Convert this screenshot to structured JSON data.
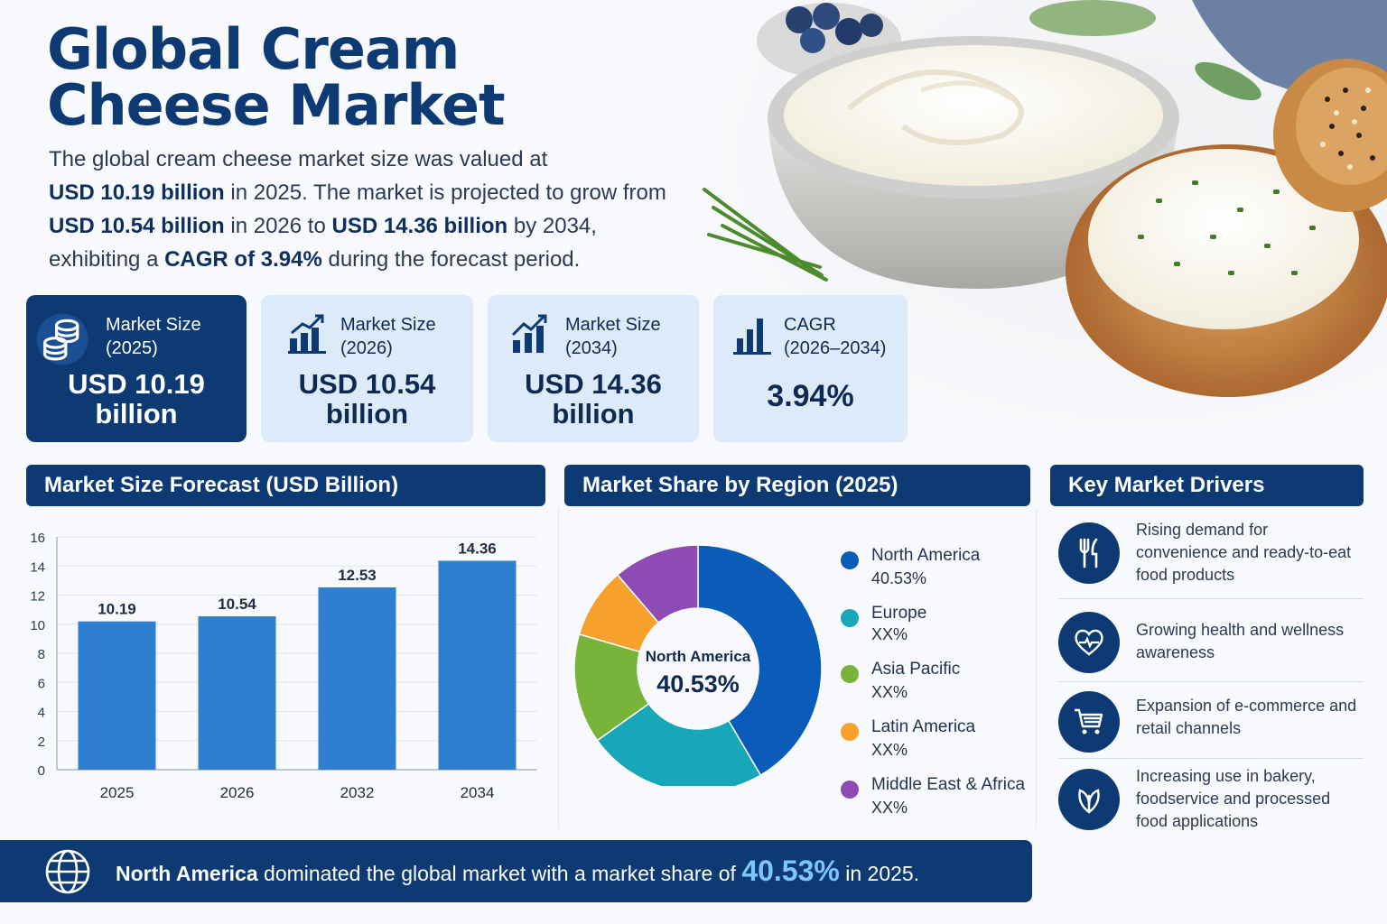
{
  "title": "Global Cream Cheese Market",
  "intro": {
    "p1": "The global cream cheese market size was valued at",
    "v1": "USD 10.19 billion",
    "p2": " in 2025. The market is projected to grow from ",
    "v2": "USD 10.54 billion",
    "p3": " in 2026 to ",
    "v3": "USD 14.36 billion",
    "p4": " by 2034, exhibiting a ",
    "v4": "CAGR of 3.94%",
    "p5": " during the forecast period."
  },
  "cards": [
    {
      "label1": "Market Size",
      "label2": "(2025)",
      "value1": "USD 10.19",
      "value2": "billion",
      "icon": "coins-icon"
    },
    {
      "label1": "Market Size",
      "label2": "(2026)",
      "value1": "USD 10.54",
      "value2": "billion",
      "icon": "bar-growth-icon"
    },
    {
      "label1": "Market Size",
      "label2": "(2034)",
      "value1": "USD 14.36",
      "value2": "billion",
      "icon": "bar-growth-icon"
    },
    {
      "label1": "CAGR",
      "label2": "(2026–2034)",
      "value1": "3.94%",
      "value2": "",
      "icon": "bar-chart-icon"
    }
  ],
  "sections": {
    "forecast": "Market Size Forecast (USD Billion)",
    "region": "Market Share by Region (2025)",
    "drivers": "Key Market Drivers"
  },
  "chart_data": [
    {
      "type": "bar",
      "title": "Market Size Forecast (USD Billion)",
      "categories": [
        "2025",
        "2026",
        "2032",
        "2034"
      ],
      "values": [
        10.19,
        10.54,
        12.53,
        14.36
      ],
      "data_labels": [
        "10.19",
        "10.54",
        "12.53",
        "14.36"
      ],
      "ylim": [
        0,
        16
      ],
      "yticks": [
        0,
        2,
        4,
        6,
        8,
        10,
        12,
        14,
        16
      ],
      "grid": true,
      "color": "#2f7fd1"
    },
    {
      "type": "pie",
      "title": "Market Share by Region (2025)",
      "center_label": "North America",
      "center_value": "40.53%",
      "slices": [
        {
          "name": "North America",
          "label": "40.53%",
          "value": 40.53,
          "color": "#0b5cb8"
        },
        {
          "name": "Europe",
          "label": "XX%",
          "value": 23,
          "color": "#17a7b8"
        },
        {
          "name": "Asia Pacific",
          "label": "XX%",
          "value": 14,
          "color": "#78b43a"
        },
        {
          "name": "Latin America",
          "label": "XX%",
          "value": 9,
          "color": "#f7a02c"
        },
        {
          "name": "Middle East & Africa",
          "label": "XX%",
          "value": 11,
          "color": "#8e4bb3"
        }
      ]
    }
  ],
  "drivers": [
    {
      "icon": "fork-knife-icon",
      "text": "Rising demand for convenience and ready-to-eat food products"
    },
    {
      "icon": "heart-pulse-icon",
      "text": "Growing health and wellness awareness"
    },
    {
      "icon": "cart-icon",
      "text": "Expansion of e-commerce and retail channels"
    },
    {
      "icon": "leaf-icon",
      "text": "Increasing use in bakery, foodservice and processed food applications"
    }
  ],
  "banner": {
    "region": "North America",
    "mid": " dominated the global market with a market share of ",
    "value": "40.53%",
    "end": " in 2025.",
    "icon": "globe-icon"
  },
  "colors": {
    "navy": "#0d3a73",
    "card_light": "#dceafa",
    "bar": "#2f7fd1"
  }
}
